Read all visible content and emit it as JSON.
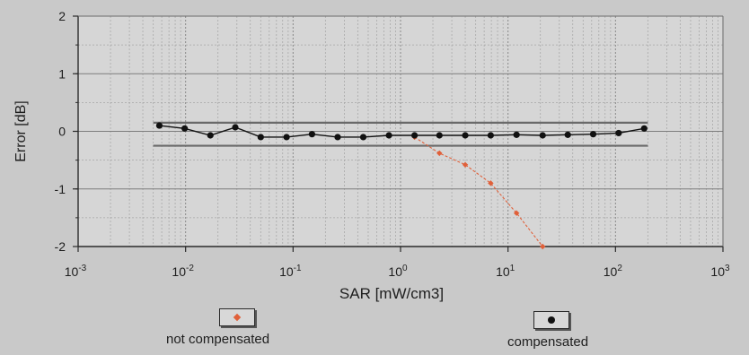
{
  "chart_data": {
    "type": "scatter",
    "xlabel": "SAR [mW/cm3]",
    "ylabel": "Error [dB]",
    "xscale": "log",
    "xlim": [
      0.001,
      1000
    ],
    "ylim": [
      -2,
      2
    ],
    "x_ticks": [
      {
        "base": "10",
        "exp": "-3"
      },
      {
        "base": "10",
        "exp": "-2"
      },
      {
        "base": "10",
        "exp": "-1"
      },
      {
        "base": "10",
        "exp": "0"
      },
      {
        "base": "10",
        "exp": "1"
      },
      {
        "base": "10",
        "exp": "2"
      },
      {
        "base": "10",
        "exp": "3"
      }
    ],
    "y_ticks": [
      "2",
      "1",
      "0",
      "-1",
      "-2"
    ],
    "grid": true,
    "tolerance_band": [
      -0.25,
      0.15
    ],
    "series": [
      {
        "name": "compensated",
        "color": "#111111",
        "marker": "circle",
        "connected": true,
        "x": [
          0.0057,
          0.0098,
          0.017,
          0.029,
          0.05,
          0.087,
          0.15,
          0.26,
          0.45,
          0.78,
          1.35,
          2.3,
          4.0,
          6.9,
          12,
          21,
          36,
          62,
          107,
          185
        ],
        "y": [
          0.1,
          0.05,
          -0.07,
          0.07,
          -0.1,
          -0.1,
          -0.05,
          -0.1,
          -0.1,
          -0.07,
          -0.07,
          -0.07,
          -0.07,
          -0.07,
          -0.06,
          -0.07,
          -0.06,
          -0.05,
          -0.03,
          0.05
        ]
      },
      {
        "name": "not compensated",
        "color": "#e0603a",
        "marker": "diamond",
        "connected": true,
        "x": [
          1.35,
          2.3,
          4.0,
          6.9,
          12,
          21
        ],
        "y": [
          -0.1,
          -0.38,
          -0.58,
          -0.9,
          -1.42,
          -2.0
        ]
      }
    ],
    "legend": {
      "placement": "bottom",
      "entries": [
        {
          "label": "not compensated",
          "color": "#e0603a",
          "marker": "diamond"
        },
        {
          "label": "compensated",
          "color": "#111111",
          "marker": "circle"
        }
      ]
    }
  }
}
